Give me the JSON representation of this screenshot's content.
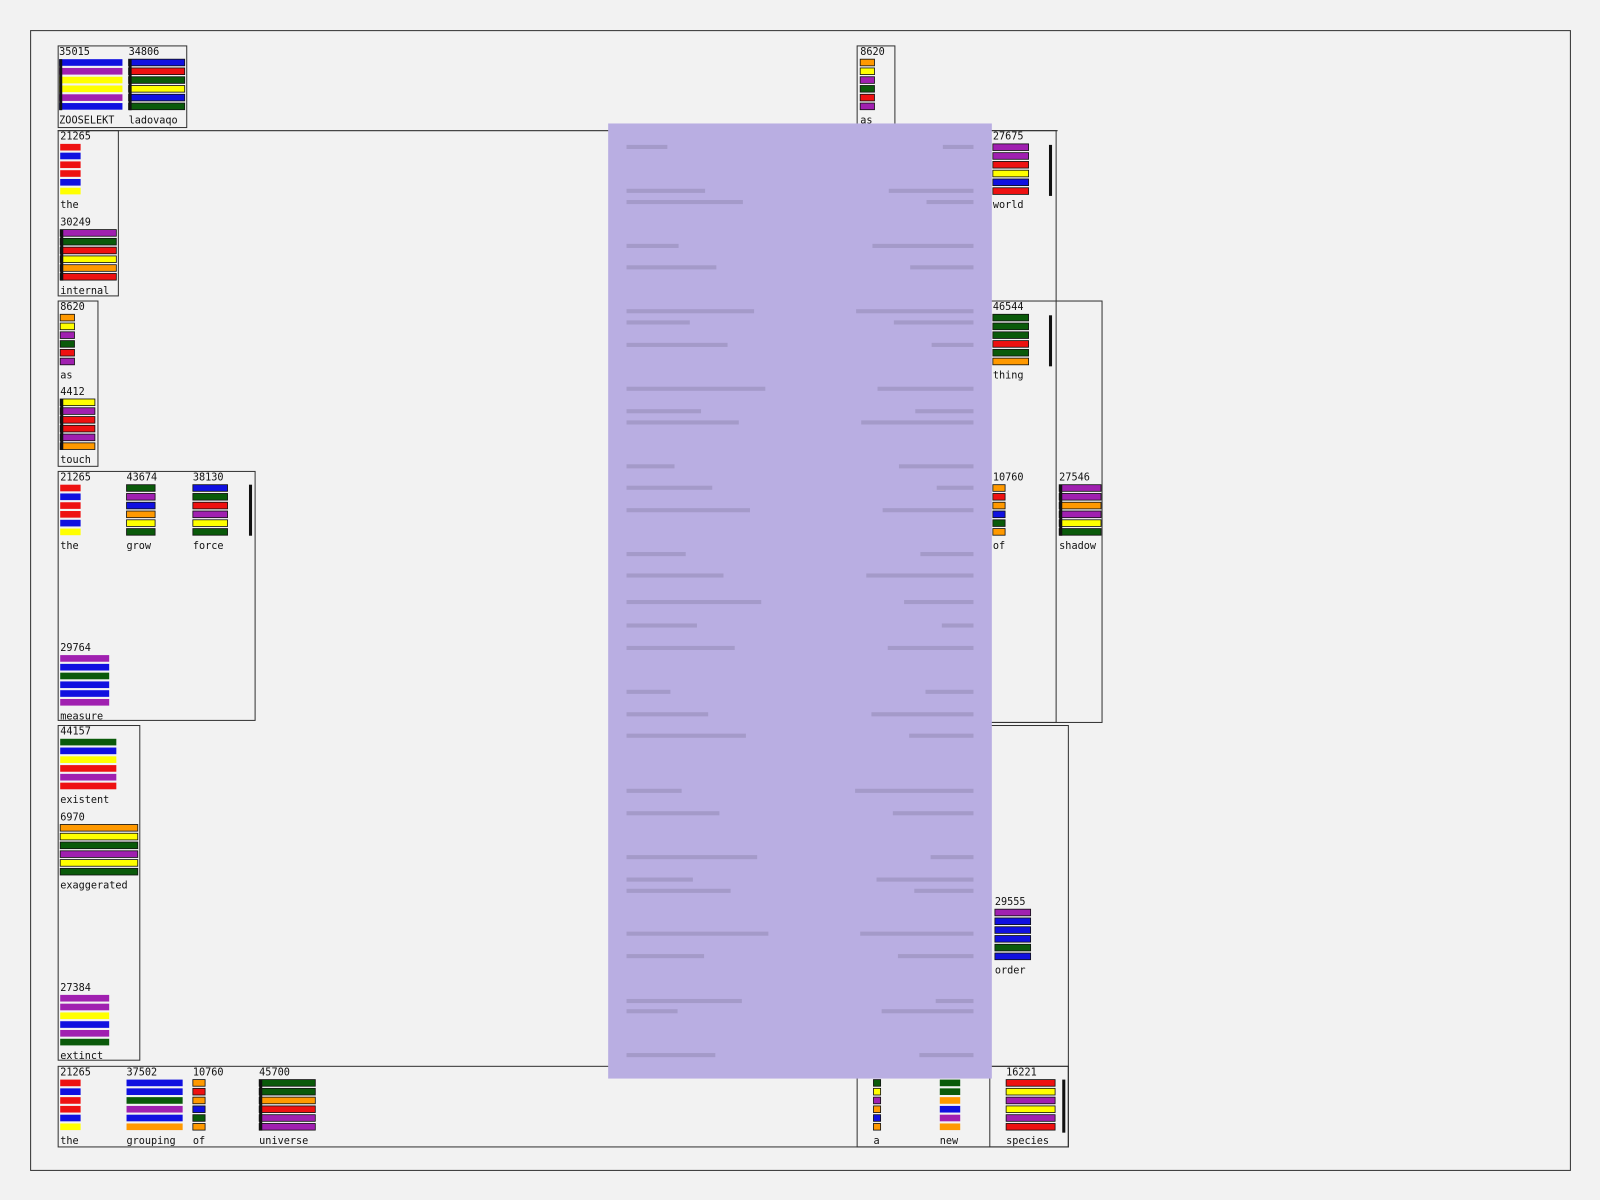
{
  "widgets": [
    {
      "number": 35015,
      "word": "ZOOSELEKT",
      "bars": [
        "#1010e0",
        "#a020b0",
        "#ffff00",
        "#ffff00",
        "#a020b0",
        "#1010e0"
      ]
    },
    {
      "number": 34806,
      "word": "ladovaqo",
      "bars": [
        "#1010e0",
        "#ee1111",
        "#0a5a0a",
        "#ffff00",
        "#1010e0",
        "#0a5a0a"
      ]
    },
    {
      "number": 8620,
      "word": "as",
      "bars": [
        "#ff9900",
        "#ffff00",
        "#a020b0",
        "#0a5a0a",
        "#ee1111",
        "#a020b0"
      ]
    },
    {
      "number": 21265,
      "word": "the",
      "bars": [
        "#ee1111",
        "#1010e0",
        "#ee1111",
        "#ee1111",
        "#1010e0",
        "#ffff00"
      ]
    },
    {
      "number": 30249,
      "word": "internal",
      "bars": [
        "#a020b0",
        "#0a5a0a",
        "#ee1111",
        "#ffff00",
        "#ff9900",
        "#ee1111"
      ]
    },
    {
      "number": 8620,
      "word": "as",
      "bars": [
        "#ff9900",
        "#ffff00",
        "#a020b0",
        "#0a5a0a",
        "#ee1111",
        "#a020b0"
      ]
    },
    {
      "number": 4412,
      "word": "touch",
      "bars": [
        "#ffff00",
        "#a020b0",
        "#ee1111",
        "#ee1111",
        "#a020b0",
        "#ff9900"
      ]
    },
    {
      "number": 21265,
      "word": "the",
      "bars": [
        "#ee1111",
        "#1010e0",
        "#ee1111",
        "#ee1111",
        "#1010e0",
        "#ffff00"
      ]
    },
    {
      "number": 43674,
      "word": "grow",
      "bars": [
        "#0a5a0a",
        "#a020b0",
        "#1010e0",
        "#ff9900",
        "#ffff00",
        "#0a5a0a"
      ]
    },
    {
      "number": 38130,
      "word": "force",
      "bars": [
        "#1010e0",
        "#0a5a0a",
        "#ee1111",
        "#a020b0",
        "#ffff00",
        "#0a5a0a"
      ]
    },
    {
      "number": 29764,
      "word": "measure",
      "bars": [
        "#a020b0",
        "#1010e0",
        "#0a5a0a",
        "#1010e0",
        "#1010e0",
        "#a020b0"
      ]
    },
    {
      "number": 44157,
      "word": "existent",
      "bars": [
        "#0a5a0a",
        "#1010e0",
        "#ffff00",
        "#ee1111",
        "#a020b0",
        "#ee1111"
      ]
    },
    {
      "number": 6970,
      "word": "exaggerated",
      "bars": [
        "#ff9900",
        "#ffff00",
        "#0a5a0a",
        "#a020b0",
        "#ffff00",
        "#0a5a0a"
      ]
    },
    {
      "number": 27384,
      "word": "extinct",
      "bars": [
        "#a020b0",
        "#a020b0",
        "#ffff00",
        "#1010e0",
        "#a020b0",
        "#0a5a0a"
      ]
    },
    {
      "number": 21265,
      "word": "the",
      "bars": [
        "#ee1111",
        "#1010e0",
        "#ee1111",
        "#ee1111",
        "#1010e0",
        "#ffff00"
      ]
    },
    {
      "number": 37502,
      "word": "grouping",
      "bars": [
        "#1010e0",
        "#1010e0",
        "#0a5a0a",
        "#a020b0",
        "#1010e0",
        "#ff9900"
      ]
    },
    {
      "number": 10760,
      "word": "of",
      "bars": [
        "#ff9900",
        "#ee1111",
        "#ff9900",
        "#1010e0",
        "#0a5a0a",
        "#ff9900"
      ]
    },
    {
      "number": 45700,
      "word": "universe",
      "bars": [
        "#0a5a0a",
        "#0a5a0a",
        "#ff9900",
        "#ee1111",
        "#a020b0",
        "#a020b0"
      ]
    },
    {
      "number": 27675,
      "word": "world",
      "bars": [
        "#a020b0",
        "#a020b0",
        "#ee1111",
        "#ffff00",
        "#1010e0",
        "#ee1111"
      ]
    },
    {
      "number": 46544,
      "word": "thing",
      "bars": [
        "#0a5a0a",
        "#0a5a0a",
        "#0a5a0a",
        "#ee1111",
        "#0a5a0a",
        "#ff9900"
      ]
    },
    {
      "number": 10760,
      "word": "of",
      "bars": [
        "#ff9900",
        "#ee1111",
        "#ff9900",
        "#1010e0",
        "#0a5a0a",
        "#ff9900"
      ]
    },
    {
      "number": 27546,
      "word": "shadow",
      "bars": [
        "#a020b0",
        "#a020b0",
        "#ff9900",
        "#a020b0",
        "#ffff00",
        "#0a5a0a"
      ]
    },
    {
      "number": 29555,
      "word": "order",
      "bars": [
        "#a020b0",
        "#1010e0",
        "#1010e0",
        "#1010e0",
        "#0a5a0a",
        "#1010e0"
      ]
    },
    {
      "number": 16221,
      "word": "species",
      "bars": [
        "#ee1111",
        "#ffff00",
        "#a020b0",
        "#ffff00",
        "#a020b0",
        "#ee1111"
      ]
    },
    {
      "word": "a",
      "bars": [
        "#0a5a0a",
        "#ffff00",
        "#a020b0",
        "#ff9900",
        "#1010e0",
        "#ff9900"
      ]
    },
    {
      "word": "new",
      "bars": [
        "#0a5a0a",
        "#0a5a0a",
        "#ff9900",
        "#1010e0",
        "#a020b0",
        "#ff9900"
      ]
    }
  ]
}
